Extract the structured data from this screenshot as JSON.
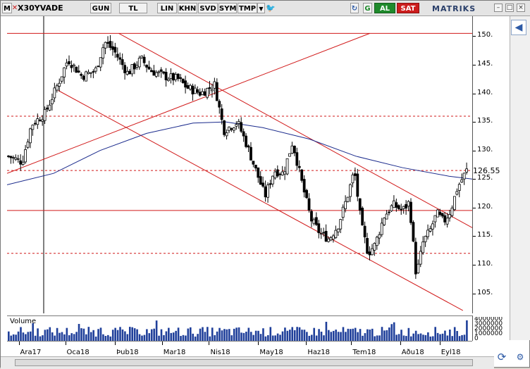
{
  "toolbar": {
    "menu_letter": "M",
    "symbol": "X30YVADE",
    "buttons": [
      "GUN",
      "TL",
      "LIN",
      "KHN",
      "SVD",
      "SYM",
      "TMP"
    ],
    "dropdown": "▼",
    "twitter": "🐦",
    "refresh": "↻",
    "g_label": "G",
    "buy": "AL",
    "sell": "SAT",
    "brand": "MATRIKS",
    "win_min": "–",
    "win_max": "□",
    "win_close": "×"
  },
  "chart_data": {
    "type": "candlestick",
    "symbol": "X30YVADE",
    "y_ticks": [
      105,
      110,
      115,
      120,
      125,
      130,
      135,
      140,
      145,
      150
    ],
    "y_tick_labels": [
      "105.",
      "110.",
      "115.",
      "120.",
      "125.",
      "130.",
      "135.",
      "140.",
      "145.",
      "150."
    ],
    "ylim": [
      101.5,
      153.5
    ],
    "last_value": "126.55",
    "x_labels": [
      "Ara17",
      "Oca18",
      "Þub18",
      "Mar18",
      "Nis18",
      "May18",
      "Haz18",
      "Tem18",
      "Aðu18",
      "Eyl18"
    ],
    "x_label_pos": [
      0.025,
      0.125,
      0.232,
      0.333,
      0.434,
      0.54,
      0.643,
      0.74,
      0.845,
      0.93
    ],
    "close_path": [
      [
        0.0,
        129
      ],
      [
        0.03,
        128
      ],
      [
        0.05,
        134.5
      ],
      [
        0.08,
        136.5
      ],
      [
        0.11,
        142
      ],
      [
        0.13,
        146
      ],
      [
        0.16,
        143
      ],
      [
        0.19,
        144
      ],
      [
        0.21,
        149
      ],
      [
        0.23,
        147.5
      ],
      [
        0.26,
        143.5
      ],
      [
        0.29,
        146
      ],
      [
        0.31,
        144
      ],
      [
        0.34,
        143
      ],
      [
        0.37,
        142.5
      ],
      [
        0.39,
        141
      ],
      [
        0.42,
        140
      ],
      [
        0.45,
        141.5
      ],
      [
        0.47,
        133.5
      ],
      [
        0.5,
        135
      ],
      [
        0.52,
        131
      ],
      [
        0.54,
        126.5
      ],
      [
        0.56,
        122
      ],
      [
        0.58,
        126.5
      ],
      [
        0.6,
        126
      ],
      [
        0.62,
        131.5
      ],
      [
        0.64,
        124.5
      ],
      [
        0.66,
        118
      ],
      [
        0.68,
        115.5
      ],
      [
        0.7,
        114.5
      ],
      [
        0.72,
        117
      ],
      [
        0.74,
        122
      ],
      [
        0.755,
        126.5
      ],
      [
        0.77,
        117
      ],
      [
        0.785,
        112
      ],
      [
        0.8,
        113.5
      ],
      [
        0.82,
        118.5
      ],
      [
        0.84,
        120.5
      ],
      [
        0.86,
        119.5
      ],
      [
        0.875,
        121
      ],
      [
        0.89,
        108
      ],
      [
        0.905,
        114
      ],
      [
        0.92,
        116
      ],
      [
        0.935,
        119
      ],
      [
        0.95,
        117.5
      ],
      [
        0.965,
        119.5
      ],
      [
        0.98,
        123.5
      ],
      [
        1.0,
        126.5
      ]
    ],
    "moving_average": [
      [
        0.0,
        124
      ],
      [
        0.1,
        126
      ],
      [
        0.2,
        130
      ],
      [
        0.3,
        133
      ],
      [
        0.4,
        134.8
      ],
      [
        0.47,
        135
      ],
      [
        0.55,
        134
      ],
      [
        0.65,
        132
      ],
      [
        0.75,
        129
      ],
      [
        0.85,
        127
      ],
      [
        0.95,
        125.5
      ],
      [
        1.0,
        125
      ]
    ],
    "h_solid": [
      150.5,
      119.5
    ],
    "h_dashed": [
      136,
      126.5,
      112
    ],
    "trendlines": [
      {
        "from": [
          0.0,
          126
        ],
        "to": [
          0.78,
          150.5
        ]
      },
      {
        "from": [
          0.24,
          150.5
        ],
        "to": [
          1.0,
          116.5
        ]
      },
      {
        "from": [
          0.11,
          140.5
        ],
        "to": [
          0.98,
          102
        ]
      }
    ],
    "volume_axis_labels": [
      "4000000",
      "3000000",
      "2000000",
      "1000000",
      "0"
    ],
    "volume_label": "Volume"
  }
}
